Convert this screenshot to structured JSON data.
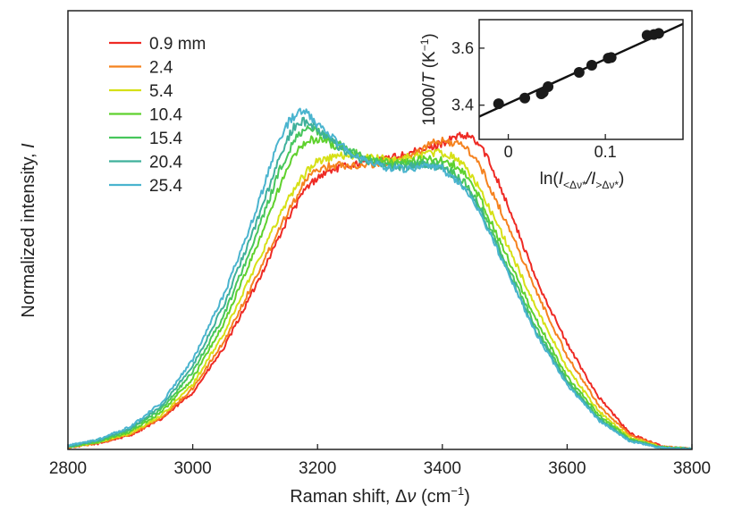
{
  "chart_data": {
    "main": {
      "type": "line",
      "xlabel_prefix": "Raman shift, Δ",
      "xlabel_var": "ν",
      "xlabel_unit_open": " (cm",
      "xlabel_unit_exp": "−1",
      "xlabel_unit_close": ")",
      "ylabel_prefix": "Normalized intensity, ",
      "ylabel_var": "I",
      "xlim": [
        2800,
        3800
      ],
      "ylim": [
        0,
        1.08
      ],
      "x_ticks": [
        "2800",
        "3000",
        "3200",
        "3400",
        "3600",
        "3800"
      ],
      "legend_position": "top-left",
      "series": [
        {
          "name": "0.9 mm",
          "color": "#ee2a24",
          "x": [
            2800,
            2850,
            2900,
            2950,
            3000,
            3050,
            3100,
            3150,
            3180,
            3200,
            3225,
            3250,
            3275,
            3300,
            3325,
            3350,
            3375,
            3400,
            3425,
            3445,
            3465,
            3490,
            3520,
            3550,
            3600,
            3650,
            3700,
            3750,
            3800
          ],
          "y": [
            0.005,
            0.015,
            0.035,
            0.075,
            0.14,
            0.25,
            0.4,
            0.56,
            0.64,
            0.67,
            0.69,
            0.7,
            0.705,
            0.71,
            0.72,
            0.73,
            0.74,
            0.755,
            0.77,
            0.77,
            0.74,
            0.66,
            0.54,
            0.42,
            0.26,
            0.13,
            0.04,
            0.008,
            0.001
          ]
        },
        {
          "name": "2.4",
          "color": "#f5821f",
          "x": [
            2800,
            2850,
            2900,
            2950,
            3000,
            3050,
            3100,
            3150,
            3180,
            3200,
            3225,
            3250,
            3275,
            3300,
            3325,
            3350,
            3375,
            3395,
            3420,
            3440,
            3460,
            3490,
            3520,
            3550,
            3600,
            3650,
            3700,
            3750,
            3800
          ],
          "y": [
            0.005,
            0.016,
            0.037,
            0.078,
            0.15,
            0.265,
            0.42,
            0.58,
            0.66,
            0.69,
            0.7,
            0.7,
            0.7,
            0.705,
            0.71,
            0.725,
            0.745,
            0.76,
            0.755,
            0.74,
            0.7,
            0.6,
            0.5,
            0.39,
            0.23,
            0.11,
            0.035,
            0.007,
            0.001
          ]
        },
        {
          "name": "5.4",
          "color": "#d6e016",
          "x": [
            2800,
            2850,
            2900,
            2950,
            3000,
            3050,
            3100,
            3150,
            3180,
            3200,
            3225,
            3250,
            3275,
            3300,
            3325,
            3350,
            3375,
            3400,
            3420,
            3440,
            3460,
            3490,
            3520,
            3550,
            3600,
            3650,
            3700,
            3750,
            3800
          ],
          "y": [
            0.006,
            0.018,
            0.04,
            0.084,
            0.16,
            0.285,
            0.45,
            0.61,
            0.68,
            0.71,
            0.72,
            0.725,
            0.72,
            0.715,
            0.715,
            0.72,
            0.73,
            0.73,
            0.72,
            0.69,
            0.64,
            0.55,
            0.45,
            0.35,
            0.2,
            0.095,
            0.03,
            0.006,
            0.001
          ]
        },
        {
          "name": "10.4",
          "color": "#5fd12e",
          "x": [
            2800,
            2850,
            2900,
            2950,
            3000,
            3050,
            3100,
            3140,
            3165,
            3185,
            3200,
            3225,
            3250,
            3275,
            3300,
            3325,
            3350,
            3375,
            3400,
            3420,
            3440,
            3460,
            3490,
            3520,
            3550,
            3600,
            3650,
            3700,
            3750,
            3800
          ],
          "y": [
            0.006,
            0.019,
            0.044,
            0.092,
            0.175,
            0.31,
            0.49,
            0.65,
            0.73,
            0.76,
            0.765,
            0.75,
            0.735,
            0.72,
            0.71,
            0.705,
            0.71,
            0.715,
            0.71,
            0.7,
            0.67,
            0.62,
            0.52,
            0.42,
            0.32,
            0.18,
            0.085,
            0.026,
            0.005,
            0.001
          ]
        },
        {
          "name": "15.4",
          "color": "#47c65c",
          "x": [
            2800,
            2850,
            2900,
            2950,
            3000,
            3050,
            3100,
            3140,
            3165,
            3180,
            3195,
            3215,
            3240,
            3265,
            3290,
            3315,
            3340,
            3370,
            3400,
            3420,
            3440,
            3460,
            3490,
            3520,
            3550,
            3600,
            3650,
            3700,
            3750,
            3800
          ],
          "y": [
            0.007,
            0.021,
            0.048,
            0.1,
            0.19,
            0.33,
            0.52,
            0.69,
            0.77,
            0.79,
            0.79,
            0.77,
            0.745,
            0.725,
            0.71,
            0.7,
            0.7,
            0.705,
            0.7,
            0.68,
            0.65,
            0.6,
            0.5,
            0.4,
            0.3,
            0.17,
            0.08,
            0.024,
            0.005,
            0.001
          ]
        },
        {
          "name": "20.4",
          "color": "#3fb09b",
          "x": [
            2800,
            2850,
            2900,
            2950,
            3000,
            3050,
            3100,
            3140,
            3160,
            3175,
            3190,
            3210,
            3235,
            3260,
            3290,
            3315,
            3340,
            3370,
            3400,
            3420,
            3440,
            3460,
            3490,
            3520,
            3550,
            3600,
            3650,
            3700,
            3750,
            3800
          ],
          "y": [
            0.008,
            0.023,
            0.052,
            0.108,
            0.205,
            0.355,
            0.55,
            0.72,
            0.79,
            0.81,
            0.8,
            0.775,
            0.745,
            0.72,
            0.705,
            0.695,
            0.695,
            0.7,
            0.695,
            0.67,
            0.64,
            0.59,
            0.49,
            0.39,
            0.29,
            0.165,
            0.075,
            0.022,
            0.004,
            0.001
          ]
        },
        {
          "name": "25.4",
          "color": "#4ab4cf",
          "x": [
            2800,
            2850,
            2900,
            2950,
            3000,
            3050,
            3100,
            3135,
            3155,
            3170,
            3180,
            3200,
            3225,
            3250,
            3280,
            3310,
            3340,
            3370,
            3400,
            3420,
            3440,
            3460,
            3490,
            3520,
            3550,
            3600,
            3650,
            3700,
            3750,
            3800
          ],
          "y": [
            0.009,
            0.025,
            0.056,
            0.115,
            0.22,
            0.38,
            0.58,
            0.75,
            0.81,
            0.83,
            0.83,
            0.8,
            0.765,
            0.735,
            0.71,
            0.695,
            0.69,
            0.695,
            0.69,
            0.665,
            0.635,
            0.585,
            0.485,
            0.385,
            0.285,
            0.16,
            0.072,
            0.021,
            0.004,
            0.001
          ]
        }
      ]
    },
    "inset": {
      "type": "scatter",
      "xlabel_prefix": "ln(",
      "xlabel_num": "I",
      "xlabel_num_sub": "<Δν*",
      "xlabel_den": "/I",
      "xlabel_den_sub": ">Δν*",
      "xlabel_close": ")",
      "ylabel_prefix": "1000/",
      "ylabel_var": "T",
      "ylabel_unit_open": " (K",
      "ylabel_unit_exp": "−1",
      "ylabel_unit_close": ")",
      "xlim": [
        -0.03,
        0.18
      ],
      "ylim": [
        3.28,
        3.7
      ],
      "x_ticks": [
        {
          "value": 0,
          "label": "0"
        },
        {
          "value": 0.1,
          "label": "0.1"
        }
      ],
      "y_ticks": [
        {
          "value": 3.4,
          "label": "3.4"
        },
        {
          "value": 3.6,
          "label": "3.6"
        }
      ],
      "points": [
        {
          "x": -0.01,
          "y": 3.405
        },
        {
          "x": 0.017,
          "y": 3.425
        },
        {
          "x": 0.034,
          "y": 3.44
        },
        {
          "x": 0.036,
          "y": 3.445
        },
        {
          "x": 0.041,
          "y": 3.465
        },
        {
          "x": 0.073,
          "y": 3.515
        },
        {
          "x": 0.086,
          "y": 3.54
        },
        {
          "x": 0.103,
          "y": 3.565
        },
        {
          "x": 0.106,
          "y": 3.567
        },
        {
          "x": 0.143,
          "y": 3.645
        },
        {
          "x": 0.15,
          "y": 3.648
        },
        {
          "x": 0.155,
          "y": 3.652
        }
      ],
      "fit_line": {
        "x": [
          -0.03,
          0.18
        ],
        "y": [
          3.36,
          3.685
        ]
      }
    }
  }
}
